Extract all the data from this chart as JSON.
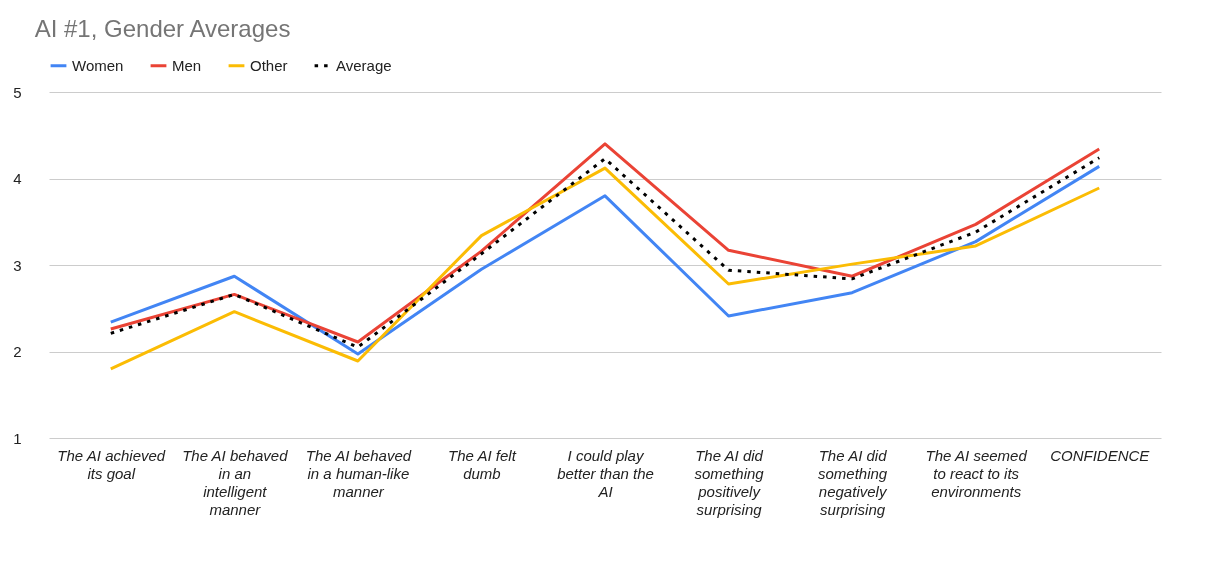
{
  "chart_data": {
    "type": "line",
    "title": "AI #1, Gender Averages",
    "categories": [
      "The AI achieved its goal",
      "The AI behaved in an intelligent manner",
      "The AI behaved in a human-like manner",
      "The AI felt dumb",
      "I could play better than the AI",
      "The AI did something positively surprising",
      "The AI did something negatively surprising",
      "The AI seemed to react to its environments",
      "CONFIDENCE"
    ],
    "series": [
      {
        "name": "Women",
        "color": "#4285f4",
        "values": [
          2.34,
          2.87,
          1.97,
          2.95,
          3.8,
          2.41,
          2.68,
          3.27,
          4.14
        ]
      },
      {
        "name": "Men",
        "color": "#ea4335",
        "values": [
          2.26,
          2.66,
          2.11,
          3.16,
          4.4,
          3.17,
          2.87,
          3.47,
          4.34
        ]
      },
      {
        "name": "Other",
        "color": "#fbbc04",
        "values": [
          1.8,
          2.46,
          1.89,
          3.34,
          4.12,
          2.78,
          3.01,
          3.22,
          3.89
        ]
      },
      {
        "name": "Average",
        "color": "#000000",
        "line_style": "dotted",
        "values": [
          2.21,
          2.66,
          2.05,
          3.13,
          4.23,
          2.94,
          2.84,
          3.38,
          4.24
        ]
      }
    ],
    "ylim": [
      1,
      5
    ],
    "yticks": [
      1,
      2,
      3,
      4,
      5
    ],
    "grid": "y",
    "legend": "top"
  }
}
